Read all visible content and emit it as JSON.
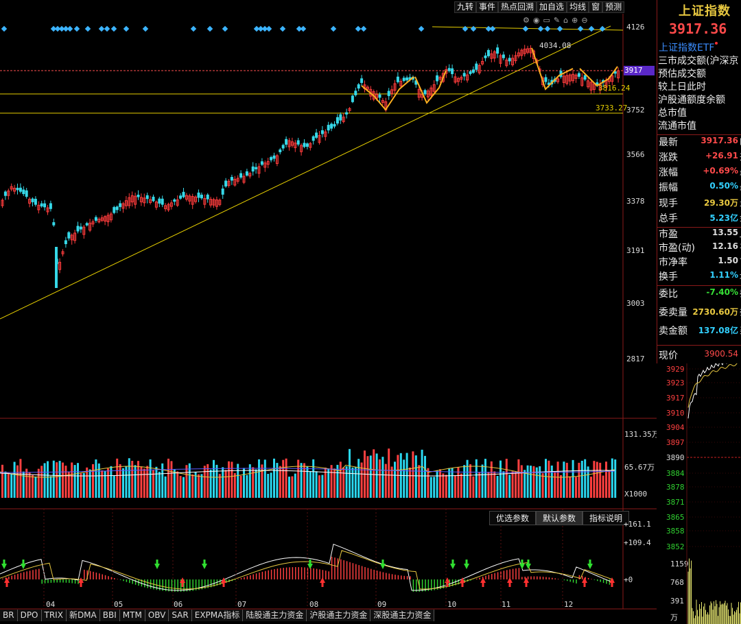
{
  "toolbar": [
    "九转",
    "事件",
    "热点回溯",
    "加自选",
    "均线",
    "窗",
    "预测"
  ],
  "index": {
    "name": "上证指数",
    "price": "3917.36",
    "etf": "上证指数ETF"
  },
  "info_lines": [
    "三市成交额(沪深京",
    "预估成交额",
    "较上日此时",
    "沪股通额度余额",
    "总市值",
    "流通市值"
  ],
  "quotes": [
    {
      "label": "最新",
      "value": "3917.36",
      "color": "#ff4a4a",
      "suffix": "卧"
    },
    {
      "label": "涨跌",
      "value": "+26.91",
      "color": "#ff4a4a",
      "suffix": "开"
    },
    {
      "label": "涨幅",
      "value": "+0.69%",
      "color": "#ff4a4a",
      "suffix": "最"
    },
    {
      "label": "振幅",
      "value": "0.50%",
      "color": "#32d0ff",
      "suffix": "最"
    },
    {
      "label": "现手",
      "value": "29.30万",
      "color": "#e8c840",
      "suffix": "量"
    },
    {
      "label": "总手",
      "value": "5.23亿",
      "color": "#32d0ff",
      "suffix": "金"
    },
    {
      "label": "市盈",
      "value": "13.55",
      "color": "#ddd",
      "suffix": "_"
    },
    {
      "label": "市盈(动)",
      "value": "12.16",
      "color": "#ddd",
      "suffix": "平"
    },
    {
      "label": "市净率",
      "value": "1.50",
      "color": "#ddd",
      "suffix": "下"
    },
    {
      "label": "换手",
      "value": "1.11%",
      "color": "#32d0ff",
      "suffix": "均"
    },
    {
      "label": "委比",
      "value": "-7.40%",
      "color": "#36e036",
      "suffix": "委"
    },
    {
      "label": "委卖量",
      "value": "2730.60万",
      "color": "#e8c840",
      "suffix": "委"
    },
    {
      "label": "卖金额",
      "value": "137.08亿",
      "color": "#32d0ff",
      "suffix": "买"
    }
  ],
  "current_price": {
    "label": "现价",
    "value": "3900.54"
  },
  "price_axis": [
    "4126",
    "3752",
    "3566",
    "3378",
    "3191",
    "3003",
    "2817"
  ],
  "price_marker": "3917",
  "annotations": {
    "high": "4034.08",
    "support1": "3816.24",
    "support2": "3733.27"
  },
  "volume_axis": {
    "top": "131.35万",
    "mid": "65.67万",
    "unit": "X1000"
  },
  "macd_axis": [
    "+161.1",
    "+109.4",
    "+0"
  ],
  "macd_tabs": [
    "优选参数",
    "默认参数",
    "指标说明"
  ],
  "months": [
    "04",
    "05",
    "06",
    "07",
    "08",
    "09",
    "10",
    "11",
    "12"
  ],
  "bottom_tabs": [
    "BR",
    "DPO",
    "TRIX",
    "新DMA",
    "BBI",
    "MTM",
    "OBV",
    "SAR",
    "EXPMA指标",
    "陆股通主力资金",
    "沪股通主力资金",
    "深股通主力资金"
  ],
  "mini_price_axis": [
    "3929",
    "3923",
    "3917",
    "3910",
    "3904",
    "3897",
    "3890",
    "3884",
    "3878",
    "3871",
    "3865",
    "3858",
    "3852"
  ],
  "mini_volume_axis": [
    "1159",
    "768",
    "391",
    "万"
  ],
  "colors": {
    "up": "#ff3c3c",
    "down": "#36d8e8",
    "ma": "#e8c840",
    "line": "#e8d000"
  }
}
